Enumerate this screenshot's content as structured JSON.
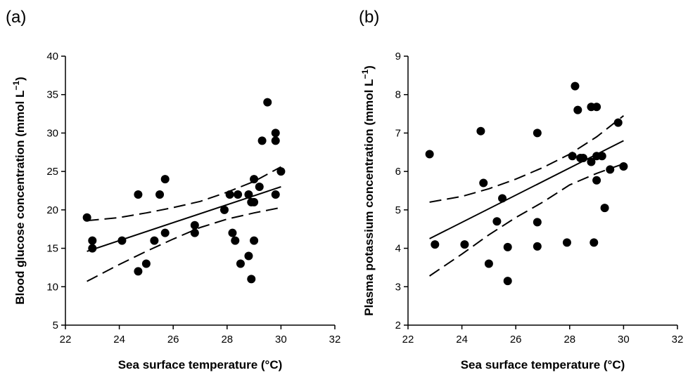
{
  "chart_data": [
    {
      "type": "scatter",
      "panel_label": "(a)",
      "title": "",
      "xlabel": "Sea surface temperature (°C)",
      "ylabel": "Blood glucose concentration (mmol L",
      "ylabel_superscript": "−1",
      "ylabel_suffix": ")",
      "xlim": [
        22,
        32
      ],
      "ylim": [
        5,
        40
      ],
      "xticks": [
        22,
        24,
        26,
        28,
        30,
        32
      ],
      "yticks": [
        5,
        10,
        15,
        20,
        25,
        30,
        35,
        40
      ],
      "grid": false,
      "legend": "none",
      "points": [
        {
          "x": 22.8,
          "y": 19
        },
        {
          "x": 23.0,
          "y": 16
        },
        {
          "x": 23.0,
          "y": 15
        },
        {
          "x": 24.1,
          "y": 16
        },
        {
          "x": 24.7,
          "y": 22
        },
        {
          "x": 24.7,
          "y": 12
        },
        {
          "x": 25.0,
          "y": 13
        },
        {
          "x": 25.3,
          "y": 16
        },
        {
          "x": 25.5,
          "y": 22
        },
        {
          "x": 25.7,
          "y": 24
        },
        {
          "x": 25.7,
          "y": 17
        },
        {
          "x": 26.8,
          "y": 18
        },
        {
          "x": 26.8,
          "y": 17
        },
        {
          "x": 27.9,
          "y": 20
        },
        {
          "x": 28.1,
          "y": 22
        },
        {
          "x": 28.2,
          "y": 17
        },
        {
          "x": 28.3,
          "y": 16
        },
        {
          "x": 28.4,
          "y": 22
        },
        {
          "x": 28.5,
          "y": 13
        },
        {
          "x": 28.8,
          "y": 22
        },
        {
          "x": 28.8,
          "y": 14
        },
        {
          "x": 28.9,
          "y": 11
        },
        {
          "x": 28.9,
          "y": 21
        },
        {
          "x": 29.0,
          "y": 24
        },
        {
          "x": 29.0,
          "y": 21
        },
        {
          "x": 29.0,
          "y": 16
        },
        {
          "x": 29.2,
          "y": 23
        },
        {
          "x": 29.3,
          "y": 29
        },
        {
          "x": 29.5,
          "y": 34
        },
        {
          "x": 29.8,
          "y": 30
        },
        {
          "x": 29.8,
          "y": 29
        },
        {
          "x": 29.8,
          "y": 22
        },
        {
          "x": 30.0,
          "y": 25
        }
      ],
      "fit": {
        "x": [
          22.8,
          30.0
        ],
        "y": [
          14.6,
          23.0
        ]
      },
      "ci_upper": {
        "x": [
          22.8,
          24,
          25,
          26,
          27,
          28,
          29,
          30
        ],
        "y": [
          18.6,
          19.0,
          19.6,
          20.3,
          21.1,
          22.3,
          23.7,
          25.6
        ]
      },
      "ci_lower": {
        "x": [
          22.8,
          24,
          25,
          26,
          27,
          28,
          29,
          30
        ],
        "y": [
          10.7,
          12.9,
          14.6,
          16.2,
          17.7,
          18.8,
          19.6,
          20.3
        ]
      }
    },
    {
      "type": "scatter",
      "panel_label": "(b)",
      "title": "",
      "xlabel": "Sea surface temperature (°C)",
      "ylabel": "Plasma potassium concentration (mmol L",
      "ylabel_superscript": "−1",
      "ylabel_suffix": ")",
      "xlim": [
        22,
        32
      ],
      "ylim": [
        2,
        9
      ],
      "xticks": [
        22,
        24,
        26,
        28,
        30,
        32
      ],
      "yticks": [
        2,
        3,
        4,
        5,
        6,
        7,
        8,
        9
      ],
      "grid": false,
      "legend": "none",
      "points": [
        {
          "x": 22.8,
          "y": 6.45
        },
        {
          "x": 23.0,
          "y": 4.1
        },
        {
          "x": 24.1,
          "y": 4.1
        },
        {
          "x": 24.7,
          "y": 7.05
        },
        {
          "x": 24.8,
          "y": 5.7
        },
        {
          "x": 25.0,
          "y": 3.6
        },
        {
          "x": 25.3,
          "y": 4.7
        },
        {
          "x": 25.5,
          "y": 5.3
        },
        {
          "x": 25.7,
          "y": 3.15
        },
        {
          "x": 25.7,
          "y": 4.03
        },
        {
          "x": 26.8,
          "y": 7.0
        },
        {
          "x": 26.8,
          "y": 4.68
        },
        {
          "x": 26.8,
          "y": 4.05
        },
        {
          "x": 27.9,
          "y": 4.15
        },
        {
          "x": 28.1,
          "y": 6.4
        },
        {
          "x": 28.2,
          "y": 8.22
        },
        {
          "x": 28.3,
          "y": 7.6
        },
        {
          "x": 28.4,
          "y": 6.35
        },
        {
          "x": 28.5,
          "y": 6.35
        },
        {
          "x": 28.8,
          "y": 7.68
        },
        {
          "x": 28.8,
          "y": 6.25
        },
        {
          "x": 28.9,
          "y": 4.15
        },
        {
          "x": 29.0,
          "y": 7.68
        },
        {
          "x": 29.0,
          "y": 6.4
        },
        {
          "x": 29.0,
          "y": 5.77
        },
        {
          "x": 29.2,
          "y": 6.4
        },
        {
          "x": 29.3,
          "y": 5.05
        },
        {
          "x": 29.5,
          "y": 6.05
        },
        {
          "x": 29.8,
          "y": 7.27
        },
        {
          "x": 30.0,
          "y": 6.13
        }
      ],
      "fit": {
        "x": [
          22.8,
          30.0
        ],
        "y": [
          4.25,
          6.8
        ]
      },
      "ci_upper": {
        "x": [
          22.8,
          24,
          25,
          26,
          27,
          28,
          29,
          30
        ],
        "y": [
          5.2,
          5.35,
          5.55,
          5.8,
          6.1,
          6.45,
          6.9,
          7.45
        ]
      },
      "ci_lower": {
        "x": [
          22.8,
          24,
          25,
          26,
          27,
          28,
          29,
          30
        ],
        "y": [
          3.28,
          3.85,
          4.35,
          4.8,
          5.2,
          5.65,
          5.95,
          6.2
        ]
      }
    }
  ]
}
